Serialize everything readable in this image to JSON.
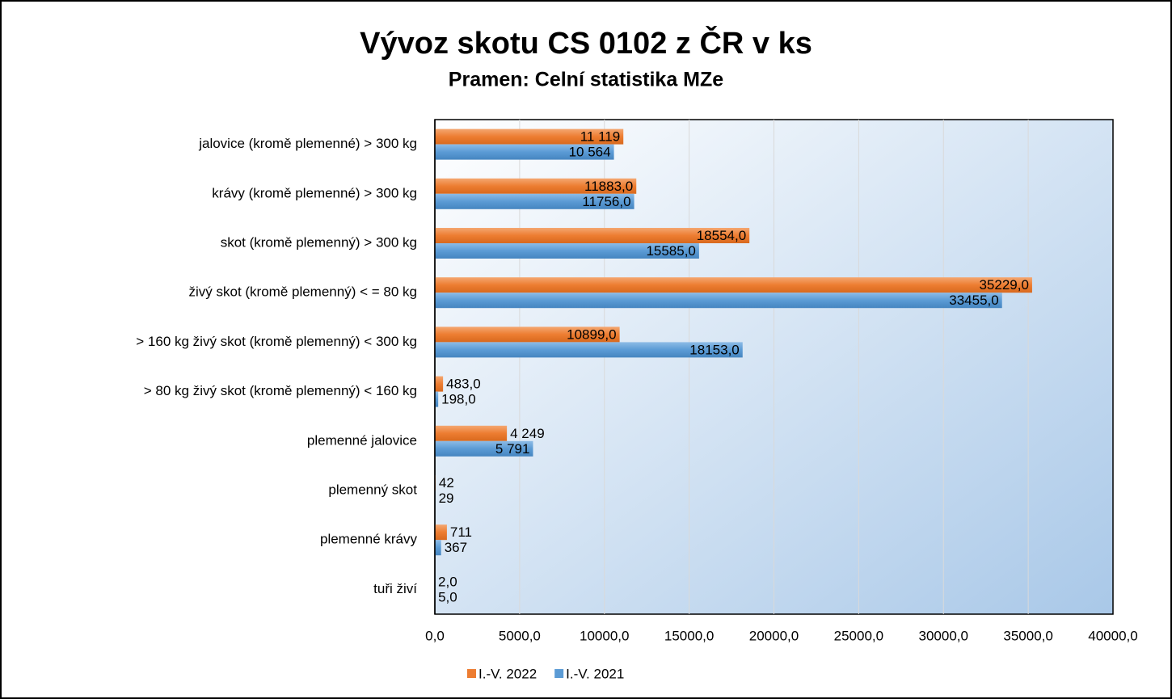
{
  "chart_data": {
    "type": "barh",
    "title": "Vývoz skotu CS 0102 z ČR v ks",
    "subtitle": "Pramen: Celní statistika MZe",
    "categories": [
      "jalovice (kromě plemenné) > 300 kg",
      "krávy (kromě plemenné) > 300 kg",
      "skot (kromě plemenný) > 300 kg",
      "živý skot (kromě plemenný) < = 80 kg",
      "> 160 kg živý skot (kromě plemenný) < 300 kg",
      "> 80 kg živý skot (kromě plemenný) < 160 kg",
      "plemenné jalovice",
      "plemenný skot",
      "plemenné krávy",
      "tuři živí"
    ],
    "series": [
      {
        "name": "I.-V. 2022",
        "color": "#ed7d31",
        "values": [
          11119,
          11883,
          18554,
          35229,
          10899,
          483,
          4249,
          42,
          711,
          2
        ],
        "value_labels": [
          "11 119",
          "11883,0",
          "18554,0",
          "35229,0",
          "10899,0",
          "483,0",
          "4 249",
          "42",
          "711",
          "2,0"
        ]
      },
      {
        "name": "I.-V. 2021",
        "color": "#5b9bd5",
        "values": [
          10564,
          11756,
          15585,
          33455,
          18153,
          198,
          5791,
          29,
          367,
          5
        ],
        "value_labels": [
          "10 564",
          "11756,0",
          "15585,0",
          "33455,0",
          "18153,0",
          "198,0",
          "5 791",
          "29",
          "367",
          "5,0"
        ]
      }
    ],
    "xlim": [
      0,
      40000
    ],
    "xticks": [
      {
        "value": 0,
        "label": "0,0"
      },
      {
        "value": 5000,
        "label": "5000,0"
      },
      {
        "value": 10000,
        "label": "10000,0"
      },
      {
        "value": 15000,
        "label": "15000,0"
      },
      {
        "value": 20000,
        "label": "20000,0"
      },
      {
        "value": 25000,
        "label": "25000,0"
      },
      {
        "value": 30000,
        "label": "30000,0"
      },
      {
        "value": 35000,
        "label": "35000,0"
      },
      {
        "value": 40000,
        "label": "40000,0"
      }
    ],
    "grid": true,
    "legend": "bottom"
  }
}
